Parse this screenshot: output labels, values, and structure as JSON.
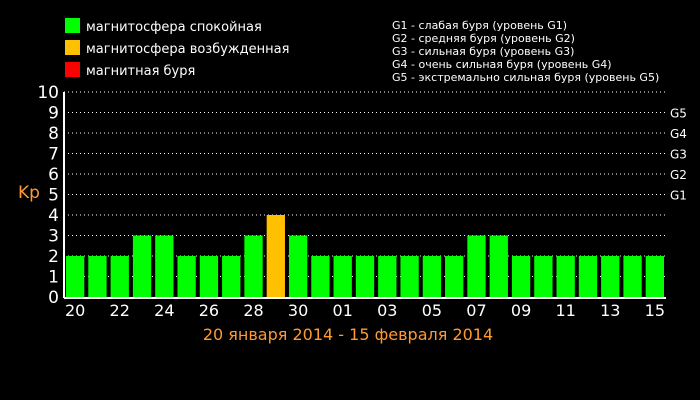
{
  "legend": {
    "items": [
      {
        "label": "магнитосфера спокойная",
        "color": "#00ff00"
      },
      {
        "label": "магнитосфера возбужденная",
        "color": "#ffc000"
      },
      {
        "label": "магнитная буря",
        "color": "#ff0000"
      }
    ]
  },
  "storm_levels": [
    "G1 - слабая буря (уровень G1)",
    "G2 - средняя буря (уровень G2)",
    "G3 - сильная буря (уровень G3)",
    "G4 - очень сильная буря (уровень G4)",
    "G5 - экстремально сильная буря (уровень G5)"
  ],
  "colors": {
    "quiet": "#00ff00",
    "active": "#ffc000",
    "storm": "#ff0000",
    "axis_label": "#ff9933",
    "grid": "#ffffff"
  },
  "chart_data": {
    "type": "bar",
    "ylabel": "Kp",
    "xlabel": "20 января 2014 - 15 февраля 2014",
    "ylim": [
      0,
      10
    ],
    "yticks": [
      "0",
      "1",
      "2",
      "3",
      "4",
      "5",
      "6",
      "7",
      "8",
      "9",
      "10"
    ],
    "right_ticks": [
      {
        "label": "G1",
        "value": 5
      },
      {
        "label": "G2",
        "value": 6
      },
      {
        "label": "G3",
        "value": 7
      },
      {
        "label": "G4",
        "value": 8
      },
      {
        "label": "G5",
        "value": 9
      }
    ],
    "xtick_labels": [
      "20",
      "22",
      "24",
      "26",
      "28",
      "30",
      "01",
      "03",
      "05",
      "07",
      "09",
      "11",
      "13",
      "15"
    ],
    "categories": [
      "20",
      "21",
      "22",
      "23",
      "24",
      "25",
      "26",
      "27",
      "28",
      "29",
      "30",
      "31",
      "01",
      "02",
      "03",
      "04",
      "05",
      "06",
      "07",
      "08",
      "09",
      "10",
      "11",
      "12",
      "13",
      "14",
      "15"
    ],
    "values": [
      2,
      2,
      2,
      3,
      3,
      2,
      2,
      2,
      3,
      4,
      3,
      2,
      2,
      2,
      2,
      2,
      2,
      2,
      3,
      3,
      2,
      2,
      2,
      2,
      2,
      2,
      2
    ],
    "grid": "dotted horizontal"
  }
}
